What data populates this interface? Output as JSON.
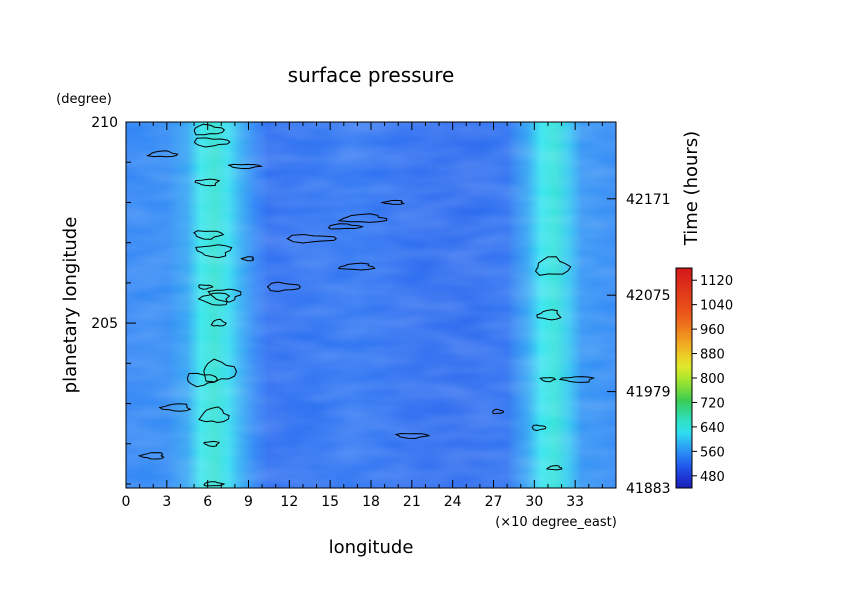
{
  "chart_data": {
    "type": "heatmap",
    "title": "surface pressure",
    "xlabel": "longitude",
    "x_unit": "(×10 degree_east)",
    "ylabel": "planetary longitude",
    "y_unit": "(degree)",
    "y2label": "Time (hours)",
    "xlim": [
      0,
      36
    ],
    "ylim": [
      200.9,
      210
    ],
    "x_ticks": [
      "0",
      "3",
      "6",
      "9",
      "12",
      "15",
      "18",
      "21",
      "24",
      "27",
      "30",
      "33"
    ],
    "y_ticks": [
      "205",
      "210"
    ],
    "y2_ticks": [
      "41883",
      "41979",
      "42075",
      "42171"
    ],
    "colorbar": {
      "min": 440,
      "max": 1160,
      "ticks": [
        "480",
        "560",
        "640",
        "720",
        "800",
        "880",
        "960",
        "1040",
        "1120"
      ]
    },
    "zonal_profile": {
      "x": [
        0,
        3,
        4.5,
        5.5,
        6.5,
        7.5,
        8.5,
        9.5,
        10.5,
        13,
        17,
        21,
        25,
        28,
        29.5,
        30.5,
        31.5,
        32.5,
        33.5,
        36
      ],
      "values": [
        545,
        550,
        575,
        630,
        650,
        620,
        580,
        545,
        525,
        528,
        532,
        525,
        522,
        528,
        575,
        625,
        645,
        605,
        560,
        548
      ]
    },
    "contour_level": 560
  }
}
